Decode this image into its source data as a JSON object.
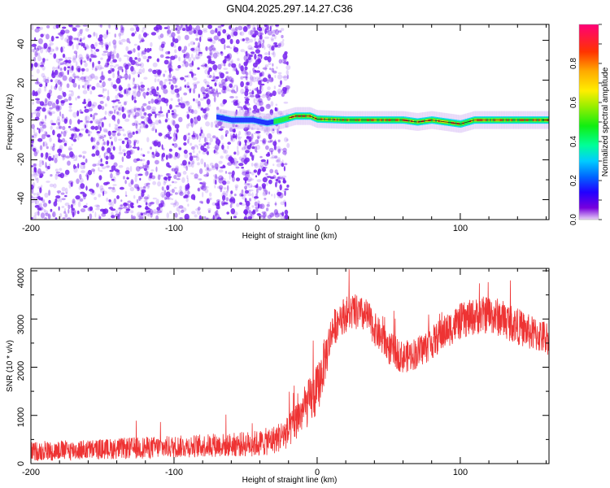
{
  "title": "GN04.2025.297.14.27.C36",
  "colors": {
    "snr_line": "#ee3333",
    "speckle": "#7722ee",
    "band_core": "#ee1122"
  },
  "chart_data": [
    {
      "type": "heatmap",
      "title": "GN04.2025.297.14.27.C36",
      "xlabel": "Height of straight line (km)",
      "ylabel": "Frequency (Hz)",
      "xlim": [
        -200,
        162
      ],
      "ylim": [
        -50,
        48
      ],
      "xticks": [
        "-200",
        "-100",
        "0",
        "100"
      ],
      "yticks": [
        "40",
        "20",
        "0",
        "-20",
        "-40"
      ],
      "noise_region_km": [
        -200,
        -20
      ],
      "signal_band": {
        "start_km": -70,
        "end_km": 162,
        "center_hz": [
          [
            -70,
            1.5
          ],
          [
            -60,
            0
          ],
          [
            -45,
            0
          ],
          [
            -35,
            -1.5
          ],
          [
            -25,
            0
          ],
          [
            -15,
            2
          ],
          [
            -5,
            2
          ],
          [
            0,
            0.5
          ],
          [
            20,
            0
          ],
          [
            40,
            0
          ],
          [
            60,
            0
          ],
          [
            70,
            -1
          ],
          [
            80,
            0
          ],
          [
            100,
            -2
          ],
          [
            110,
            0
          ],
          [
            130,
            0
          ],
          [
            162,
            0
          ]
        ]
      },
      "colorbar": {
        "label": "Normalized spectral amplitude",
        "range": [
          0,
          1
        ],
        "ticks": [
          "0.0",
          "0.2",
          "0.4",
          "0.6",
          "0.8"
        ]
      }
    },
    {
      "type": "line",
      "xlabel": "Height of straight line (km)",
      "ylabel": "SNR (10 * v/v)",
      "xlim": [
        -200,
        162
      ],
      "ylim": [
        0,
        4050
      ],
      "xticks": [
        "-200",
        "-100",
        "0",
        "100"
      ],
      "yticks": [
        "0",
        "1000",
        "2000",
        "3000",
        "4000"
      ],
      "series": [
        {
          "name": "SNR",
          "x": [
            -200,
            -180,
            -160,
            -140,
            -120,
            -100,
            -80,
            -60,
            -40,
            -30,
            -20,
            -10,
            0,
            5,
            10,
            15,
            20,
            25,
            30,
            35,
            40,
            50,
            60,
            70,
            80,
            90,
            100,
            110,
            120,
            130,
            140,
            150,
            162
          ],
          "mean": [
            250,
            270,
            290,
            310,
            330,
            350,
            370,
            390,
            420,
            500,
            650,
            1100,
            1500,
            2100,
            2700,
            3000,
            3100,
            3150,
            3100,
            3050,
            2800,
            2400,
            2200,
            2300,
            2500,
            2750,
            2950,
            3050,
            3100,
            3000,
            2850,
            2700,
            2600
          ],
          "spread": [
            200,
            210,
            210,
            220,
            230,
            230,
            240,
            250,
            280,
            300,
            350,
            450,
            550,
            500,
            400,
            380,
            380,
            380,
            370,
            360,
            350,
            350,
            330,
            340,
            350,
            360,
            380,
            380,
            400,
            400,
            380,
            370,
            360
          ]
        }
      ]
    }
  ]
}
